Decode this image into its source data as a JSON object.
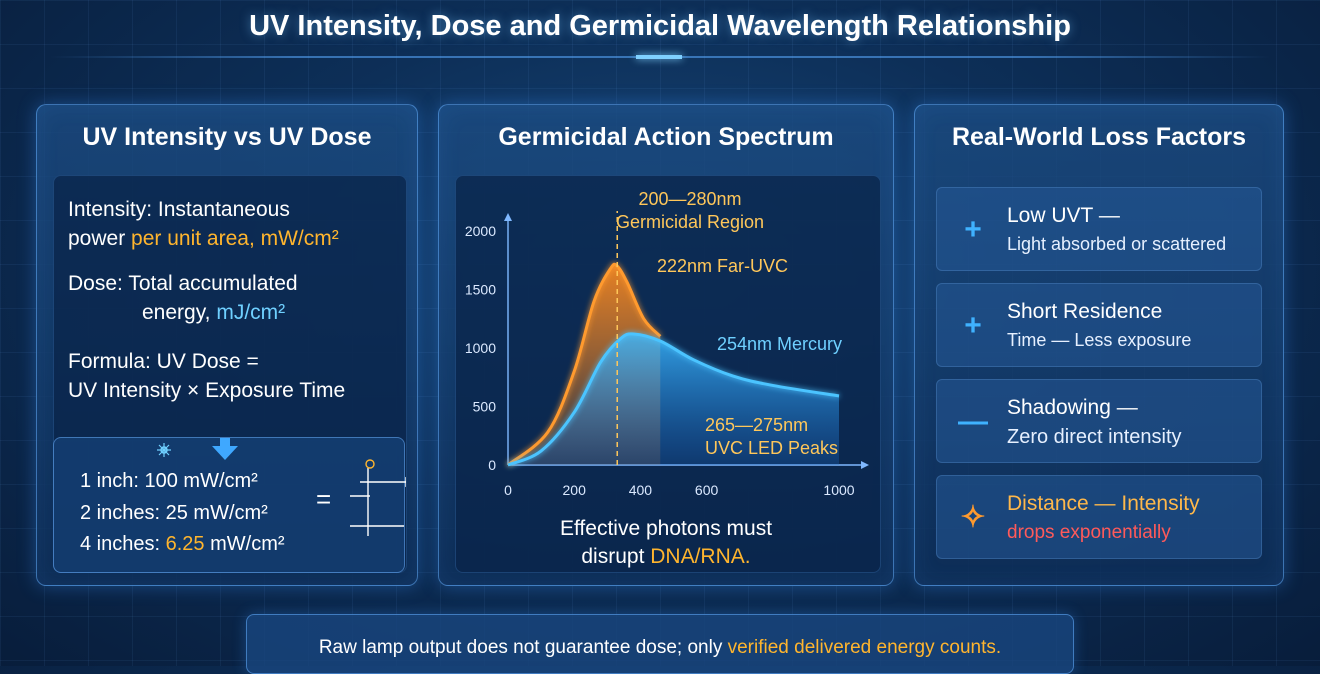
{
  "title": "UV Intensity, Dose and Germicidal Wavelength Relationship",
  "panel1": {
    "title": "UV Intensity vs UV Dose",
    "intensity_line1": "Intensity: Instantaneous",
    "intensity_prefix": "power ",
    "intensity_highlight": "per unit area, mW/cm²",
    "dose_line1": "Dose: Total accumulated",
    "dose_prefix": "energy, ",
    "dose_highlight": "mJ/cm²",
    "formula_line1": "Formula:  UV Dose =",
    "formula_line2": "UV Intensity × Exposure Time",
    "examples": [
      {
        "prefix": "1 inch: ",
        "value": "100",
        "suffix": " mW/cm²"
      },
      {
        "prefix": "2 inches: ",
        "value": "25",
        "suffix": " mW/cm²"
      },
      {
        "prefix": "4 inches: ",
        "value": "6.25",
        "suffix": " mW/cm²"
      }
    ],
    "equals": "="
  },
  "panel2": {
    "title": "Germicidal Action Spectrum",
    "ann_region_1": "200—280nm",
    "ann_region_2": "Germicidal Region",
    "ann_farUVC": "222nm Far-UVC",
    "ann_mercury": "254nm Mercury",
    "ann_led_1": "265—275nm",
    "ann_led_2": "UVC LED Peaks",
    "caption_line1": "Effective photons must",
    "caption_prefix": "disrupt ",
    "caption_highlight": "DNA/RNA."
  },
  "chart_data": {
    "type": "line",
    "x_ticks": [
      0,
      200,
      400,
      600,
      1000
    ],
    "y_ticks": [
      0,
      500,
      1000,
      1500,
      2000
    ],
    "xlim": [
      0,
      1000
    ],
    "ylim": [
      0,
      2000
    ],
    "marker_x": 330,
    "series": [
      {
        "color": "#ff9a2e",
        "x": [
          0,
          120,
          200,
          260,
          310,
          330,
          360,
          410,
          460
        ],
        "y": [
          0,
          280,
          800,
          1400,
          1680,
          1700,
          1560,
          1250,
          1100
        ]
      },
      {
        "color": "#4cc4ff",
        "x": [
          0,
          100,
          200,
          280,
          340,
          380,
          460,
          560,
          680,
          800,
          1000
        ],
        "y": [
          0,
          120,
          450,
          880,
          1080,
          1120,
          1060,
          900,
          760,
          680,
          590
        ]
      }
    ]
  },
  "panel3": {
    "title": "Real-World Loss Factors",
    "factors": [
      {
        "icon": "+",
        "title": "Low UVT —",
        "desc": "Light absorbed or scattered"
      },
      {
        "icon": "+",
        "title": "Short Residence",
        "desc": "Time — Less exposure"
      },
      {
        "icon": "—",
        "title": "Shadowing —",
        "desc": "Zero direct intensity"
      },
      {
        "icon": "✧",
        "title": "Distance — Intensity",
        "desc": "drops exponentially"
      }
    ]
  },
  "bottom": {
    "text_prefix": "Raw lamp output does not guarantee dose; only ",
    "text_highlight": "verified delivered energy counts."
  }
}
